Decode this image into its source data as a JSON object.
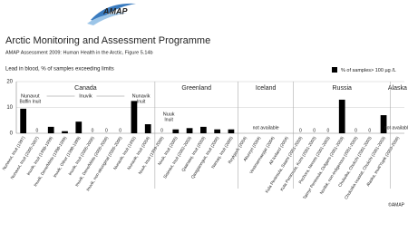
{
  "chart_data": {
    "type": "bar",
    "logo": "AMAP",
    "title": "Arctic Monitoring and Assessment Programme",
    "subtitle": "AMAP Assessment 2009: Human Health in the Arctic, Figure 5.14b",
    "y_label": "Lead in blood, % of samples exceeding limits",
    "legend": {
      "name": "% of samples> 100 µg /L",
      "color": "#000000"
    },
    "credit": "©AMAP",
    "ylim": [
      0,
      20
    ],
    "yticks": [
      0,
      10,
      20
    ],
    "grid": true,
    "groups": [
      {
        "name": "Canada",
        "subgroups": [
          {
            "label": "Nunavut",
            "sublabel": "Baffin Inuit",
            "categories": [
              "Nunavut, Inuit (1997)",
              "Nunavut, Inuit (2005-2007)"
            ],
            "values": [
              9.5,
              0
            ]
          },
          {
            "label": "Inuvik",
            "categories": [
              "Inuvik, Inuit (1998-1999)",
              "Inuvik, Dene/Métis (1998-1999)",
              "Inuvik, Other (1998-1999)",
              "Inuvik, Inuit (2005-2006)",
              "Inuvik, Dene/Métis (2005-2006)",
              "Inuvik, non-aboriginal (2005-2006)"
            ],
            "values": [
              2.5,
              0.8,
              4.5,
              0,
              0,
              0
            ]
          },
          {
            "label": "Nunavik",
            "sublabel": "Inuit",
            "categories": [
              "Nunavik, Inuit (1992)",
              "Nunavik, Inuit (2004)"
            ],
            "values": [
              12.5,
              3.5
            ]
          }
        ]
      },
      {
        "name": "Greenland",
        "subgroups": [
          {
            "label": "Nuuk",
            "sublabel": "Inuit",
            "categories": [
              "Nuuk, Inuit (1999-2000)",
              "Nuuk, Inuit (2005)"
            ],
            "values": [
              0,
              1.5
            ]
          },
          {
            "categories": [
              "Sisimiut, Inuit (2002-2003)",
              "Qaanaaq, Inuit (2003)",
              "Qasigiannguit, Inuit (2006)",
              "Narsaq, Inuit (2006)"
            ],
            "values": [
              2,
              2.5,
              1.5,
              1.5
            ]
          }
        ]
      },
      {
        "name": "Iceland",
        "note": "not available",
        "subgroups": [
          {
            "categories": [
              "Reykjavík (2004)",
              "Akureyri (2004)",
              "Vestmannaeyjar (2004)",
              "All Iceland (2004)"
            ],
            "values": [
              null,
              null,
              null,
              null
            ]
          }
        ]
      },
      {
        "name": "Russia",
        "subgroups": [
          {
            "categories": [
              "Kola Peninsula, Saami (2001-2003)",
              "Kola Peninsula, Komi (2001-2003)",
              "Pechora, Nenets (2001-2003)",
              "Taimyr Peninsula, Dolgans (2001-2003)",
              "Norilsk, non-indigenous (2001-2003)",
              "Chukotka, Chukchi (2001-2003)",
              "Chukotka coastal, Chukchi (2001-2003)"
            ],
            "values": [
              0,
              0,
              0,
              13,
              0,
              0,
              7
            ]
          }
        ]
      },
      {
        "name": "Alaska",
        "note": "not available",
        "subgroups": [
          {
            "categories": [
              "Alaska, Inuit/Yupik (2003-2006)"
            ],
            "values": [
              null
            ]
          }
        ]
      }
    ]
  }
}
